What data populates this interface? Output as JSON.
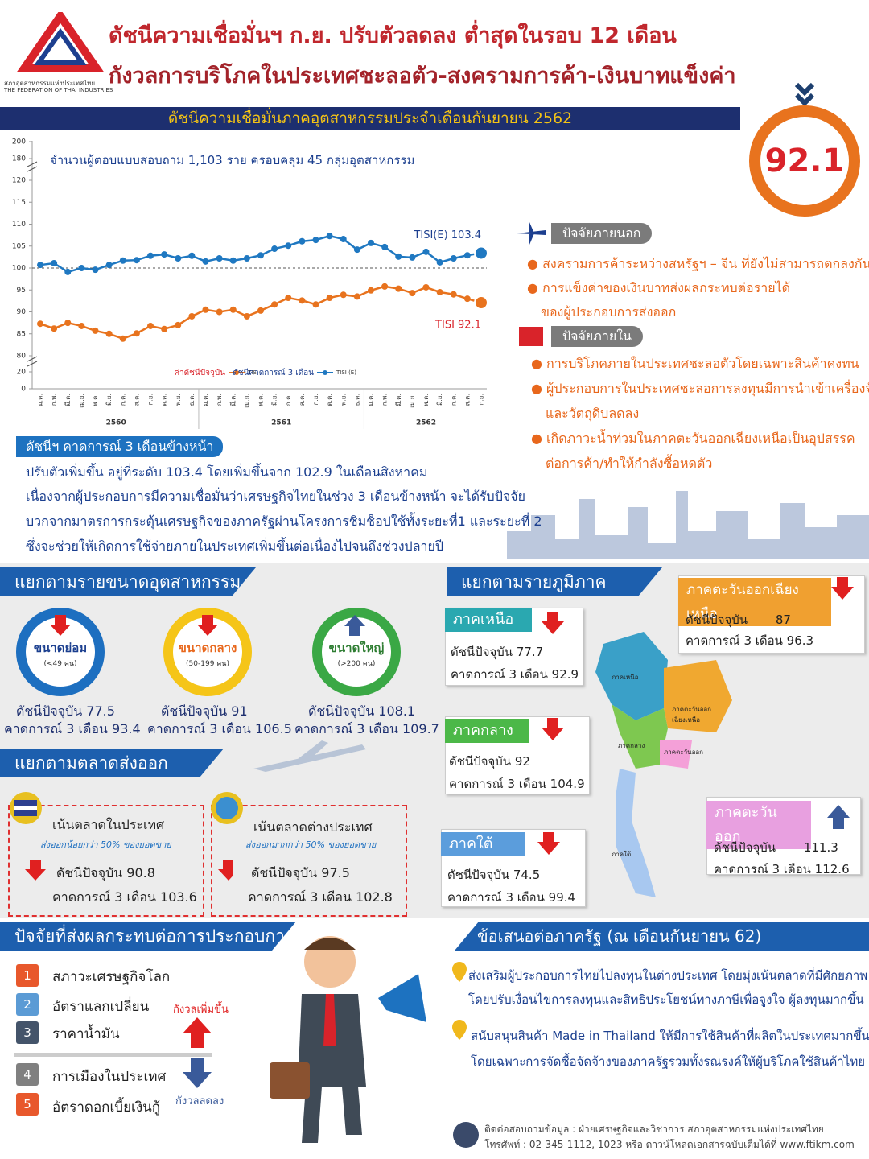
{
  "header": {
    "title_line1": "ดัชนีความเชื่อมั่นฯ ก.ย. ปรับตัวลดลง ต่ำสุดในรอบ 12 เดือน",
    "title_line2": "กังวลการบริโภคในประเทศชะลอตัว-สงครามการค้า-เงินบาทแข็งค่า",
    "logo_th": "สภาอุตสาหกรรมแห่งประเทศไทย",
    "logo_en": "THE FEDERATION OF THAI INDUSTRIES",
    "headline_value": "92.1"
  },
  "chart_data": {
    "type": "line",
    "title": "ดัชนีความเชื่อมั่นภาคอุตสาหกรรมประจำเดือนกันยายน 2562",
    "subtitle": "จำนวนผู้ตอบแบบสอบถาม 1,103 ราย ครอบคลุม 45 กลุ่มอุตสาหกรรม",
    "categories": [
      "ม.ค.",
      "ก.พ.",
      "มี.ค.",
      "เม.ย.",
      "พ.ค.",
      "มิ.ย.",
      "ก.ค.",
      "ส.ค.",
      "ก.ย.",
      "ต.ค.",
      "พ.ย.",
      "ธ.ค.",
      "ม.ค.",
      "ก.พ.",
      "มี.ค.",
      "เม.ย.",
      "พ.ค.",
      "มิ.ย.",
      "ก.ค.",
      "ส.ค.",
      "ก.ย.",
      "ต.ค.",
      "พ.ย.",
      "ธ.ค.",
      "ม.ค.",
      "ก.พ.",
      "มี.ค.",
      "เม.ย.",
      "พ.ค.",
      "มิ.ย.",
      "ก.ค.",
      "ส.ค.",
      "ก.ย."
    ],
    "years": [
      "2560",
      "2561",
      "2562"
    ],
    "series": [
      {
        "name": "TISI",
        "label": "ค่าดัชนีปัจจุบัน",
        "color": "#e8731e",
        "annotation": "TISI 92.1",
        "values": [
          87.3,
          86.2,
          87.5,
          86.8,
          85.7,
          85.0,
          83.9,
          85.1,
          86.8,
          86.1,
          87.0,
          89.0,
          90.5,
          90.0,
          90.5,
          89.0,
          90.3,
          91.7,
          93.2,
          92.6,
          91.7,
          93.2,
          93.9,
          93.5,
          94.9,
          95.8,
          95.3,
          94.3,
          95.6,
          94.5,
          94.0,
          93.0,
          92.1
        ]
      },
      {
        "name": "TISI (E)",
        "label": "ดัชนีคาดการณ์ 3 เดือน",
        "color": "#1f78c1",
        "annotation": "TISI(E) 103.4",
        "values": [
          100.7,
          101.1,
          99.1,
          100.0,
          99.6,
          100.7,
          101.7,
          101.8,
          102.8,
          103.1,
          102.2,
          102.8,
          101.5,
          102.2,
          101.7,
          102.2,
          102.9,
          104.4,
          105.1,
          106.1,
          106.4,
          107.3,
          106.6,
          104.2,
          105.7,
          104.8,
          102.6,
          102.4,
          103.7,
          101.3,
          102.2,
          102.9,
          103.4
        ]
      }
    ],
    "ylim": [
      80,
      120
    ],
    "yticks": [
      80,
      85,
      90,
      95,
      100,
      105,
      110,
      115,
      120
    ],
    "yticks_lower": [
      0,
      20
    ],
    "yticks_upper": [
      180,
      200
    ],
    "reference_line": 100
  },
  "external": {
    "title": "ปัจจัยภายนอก",
    "items": [
      [
        "สงครามการค้าระหว่างสหรัฐฯ – จีน ที่ยังไม่สามารถตกลงกันได้"
      ],
      [
        "การแข็งค่าของเงินบาทส่งผลกระทบต่อรายได้",
        "ของผู้ประกอบการส่งออก"
      ]
    ]
  },
  "internal": {
    "title": "ปัจจัยภายใน",
    "items": [
      [
        "การบริโภคภายในประเทศชะลอตัวโดยเฉพาะสินค้าคงทน"
      ],
      [
        "ผู้ประกอบการในประเทศชะลอการลงทุนมีการนำเข้าเครื่องจักร",
        "และวัตถุดิบลดลง"
      ],
      [
        "เกิดภาวะน้ำท่วมในภาคตะวันออกเฉียงเหนือเป็นอุปสรรค",
        "ต่อการค้า/ทำให้กำลังซื้อหดตัว"
      ]
    ]
  },
  "outlook": {
    "title": "ดัชนีฯ คาดการณ์ 3 เดือนข้างหน้า",
    "lines": [
      "ปรับตัวเพิ่มขึ้น อยู่ที่ระดับ 103.4 โดยเพิ่มขึ้นจาก 102.9 ในเดือนสิงหาคม",
      "เนื่องจากผู้ประกอบการมีความเชื่อมั่นว่าเศรษฐกิจไทยในช่วง 3 เดือนข้างหน้า จะได้รับปัจจัย",
      "บวกจากมาตรการกระตุ้นเศรษฐกิจของภาครัฐผ่านโครงการชิมช็อปใช้ทั้งระยะที่1 และระยะที่ 2",
      "ซึ่งจะช่วยให้เกิดการใช้จ่ายภายในประเทศเพิ่มขึ้นต่อเนื่องไปจนถึงช่วงปลายปี"
    ]
  },
  "size": {
    "title": "แยกตามรายขนาดอุตสาหกรรม",
    "current_label": "ดัชนีปัจจุบัน",
    "forecast_label": "คาดการณ์ 3 เดือน",
    "items": [
      {
        "name": "ขนาดย่อม",
        "range": "(<49 คน)",
        "current": 77.5,
        "forecast": 93.4
      },
      {
        "name": "ขนาดกลาง",
        "range": "(50-199 คน)",
        "current": 91.0,
        "forecast": 106.5
      },
      {
        "name": "ขนาดใหญ่",
        "range": "(>200 คน)",
        "current": 108.1,
        "forecast": 109.7
      }
    ]
  },
  "export": {
    "title": "แยกตามตลาดส่งออก",
    "items": [
      {
        "name": "เน้นตลาดในประเทศ",
        "note": "ส่งออกน้อยกว่า 50% ของยอดขาย",
        "current": 90.8,
        "forecast": 103.6
      },
      {
        "name": "เน้นตลาดต่างประเทศ",
        "note": "ส่งออกมากกว่า 50% ของยอดขาย",
        "current": 97.5,
        "forecast": 102.8
      }
    ]
  },
  "region": {
    "title": "แยกตามรายภูมิภาค",
    "regions": [
      {
        "name": "ภาคเหนือ",
        "current": 77.7,
        "forecast": 92.9
      },
      {
        "name": "ภาคกลาง",
        "current": 92.0,
        "forecast": 104.9
      },
      {
        "name": "ภาคใต้",
        "current": 74.5,
        "forecast": 99.4
      },
      {
        "name": "ภาคตะวันออกเฉียงเหนือ",
        "current": 87.0,
        "forecast": 96.3
      },
      {
        "name": "ภาคตะวันออก",
        "current": 111.3,
        "forecast": 112.6
      }
    ]
  },
  "factors": {
    "title": "ปัจจัยที่ส่งผลกระทบต่อการประกอบการ",
    "up_label": "กังวลเพิ่มขึ้น",
    "down_label": "กังวลลดลง",
    "items": [
      {
        "num": 1,
        "label": "สภาวะเศรษฐกิจโลก"
      },
      {
        "num": 2,
        "label": "อัตราแลกเปลี่ยน"
      },
      {
        "num": 3,
        "label": "ราคาน้ำมัน"
      },
      {
        "num": 4,
        "label": "การเมืองในประเทศ"
      },
      {
        "num": 5,
        "label": "อัตราดอกเบี้ยเงินกู้"
      }
    ]
  },
  "proposals": {
    "title": "ข้อเสนอต่อภาครัฐ (ณ เดือนกันยายน 62)",
    "items": [
      [
        "ส่งเสริมผู้ประกอบการไทยไปลงทุนในต่างประเทศ โดยมุ่งเน้นตลาดที่มีศักยภาพ",
        "โดยปรับเงื่อนไขการลงทุนและสิทธิประโยชน์ทางภาษีเพื่อจูงใจ ผู้ลงทุนมากขึ้น"
      ],
      [
        "สนับสนุนสินค้า Made in Thailand ให้มีการใช้สินค้าที่ผลิตในประเทศมากขึ้น",
        "โดยเฉพาะการจัดซื้อจัดจ้างของภาครัฐรวมทั้งรณรงค์ให้ผู้บริโภคใช้สินค้าไทย"
      ]
    ]
  },
  "footer": {
    "line1": "ติดต่อสอบถามข้อมูล : ฝ่ายเศรษฐกิจและวิชาการ สภาอุตสาหกรรมแห่งประเทศไทย",
    "line2": "โทรศัพท์ : 02-345-1112, 1023 หรือ ดาวน์โหลดเอกสารฉบับเต็มได้ที่ www.ftikm.com"
  }
}
